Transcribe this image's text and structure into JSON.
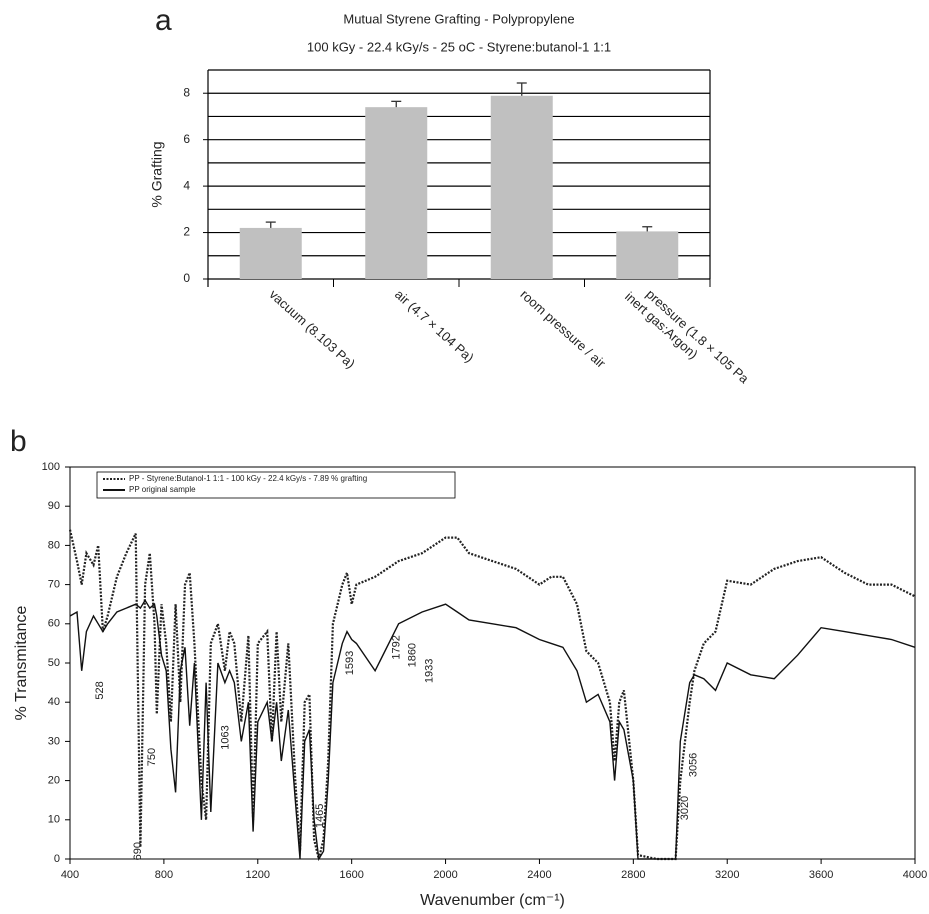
{
  "chart_data": [
    {
      "type": "bar",
      "panel_label": "a",
      "title": "Mutual Styrene Grafting - Polypropylene",
      "subtitle": "100 kGy - 22.4 kGy/s - 25 oC - Styrene:butanol-1 1:1",
      "y_label": "% Grafting",
      "categories": [
        "vacuum (8.103 Pa)",
        "air (4.7 × 104 Pa)",
        "room pressure / air",
        "pressure (1.8 × 105 Pa\ninert gas:Argon)"
      ],
      "values": [
        2.2,
        7.4,
        7.89,
        2.05
      ],
      "errors": [
        0.25,
        0.25,
        0.55,
        0.2
      ],
      "color": "#c0c0c0",
      "ylim": [
        0,
        9
      ],
      "yticks": [
        0,
        2,
        4,
        6,
        8
      ],
      "grid_lines": [
        0,
        1,
        2,
        3,
        4,
        5,
        6,
        7,
        8,
        9
      ],
      "grid": true
    },
    {
      "type": "line",
      "panel_label": "b",
      "x_label": "Wavenumber (cm⁻¹)",
      "y_label": "% Transmitance",
      "x": [
        400,
        430,
        450,
        470,
        500,
        520,
        540,
        560,
        600,
        640,
        680,
        700,
        720,
        740,
        760,
        770,
        790,
        810,
        830,
        850,
        870,
        890,
        910,
        930,
        960,
        980,
        1000,
        1030,
        1060,
        1080,
        1100,
        1130,
        1160,
        1180,
        1200,
        1240,
        1260,
        1280,
        1300,
        1330,
        1360,
        1380,
        1400,
        1420,
        1440,
        1460,
        1480,
        1500,
        1520,
        1560,
        1580,
        1600,
        1620,
        1700,
        1800,
        1900,
        2000,
        2050,
        2100,
        2200,
        2300,
        2400,
        2450,
        2500,
        2560,
        2600,
        2650,
        2700,
        2720,
        2740,
        2760,
        2800,
        2820,
        2900,
        2980,
        3000,
        3040,
        3060,
        3100,
        3150,
        3200,
        3300,
        3400,
        3500,
        3600,
        3700,
        3800,
        3900,
        4000
      ],
      "series": [
        {
          "name": "PP - Styrene:Butanol-1 1:1 - 100 kGy - 22.4 kGy/s - 7.89 % grafting",
          "color": "#222222",
          "line_style": "dotted",
          "values": [
            84,
            76,
            70,
            78,
            75,
            80,
            58,
            62,
            72,
            78,
            83,
            3,
            70,
            78,
            60,
            37,
            65,
            55,
            35,
            65,
            40,
            70,
            73,
            55,
            20,
            10,
            55,
            60,
            48,
            58,
            55,
            35,
            57,
            10,
            55,
            58,
            30,
            58,
            35,
            55,
            20,
            2,
            40,
            42,
            5,
            0,
            5,
            25,
            60,
            70,
            73,
            65,
            70,
            72,
            76,
            78,
            82,
            82,
            78,
            76,
            74,
            70,
            72,
            72,
            65,
            53,
            50,
            40,
            25,
            40,
            43,
            20,
            1,
            0,
            0,
            20,
            40,
            48,
            55,
            58,
            71,
            70,
            74,
            76,
            77,
            73,
            70,
            70,
            67
          ]
        },
        {
          "name": "PP original sample",
          "color": "#111111",
          "line_style": "solid",
          "values": [
            62,
            63,
            48,
            58,
            62,
            60,
            58,
            60,
            63,
            64,
            65,
            64,
            66,
            64,
            65,
            62,
            52,
            48,
            28,
            17,
            48,
            54,
            34,
            50,
            10,
            45,
            12,
            50,
            45,
            48,
            45,
            30,
            40,
            7,
            35,
            40,
            30,
            40,
            25,
            38,
            15,
            0,
            30,
            33,
            10,
            0,
            2,
            20,
            45,
            55,
            58,
            56,
            55,
            48,
            60,
            63,
            65,
            63,
            61,
            60,
            59,
            56,
            55,
            54,
            48,
            40,
            42,
            35,
            20,
            35,
            33,
            20,
            0,
            0,
            0,
            30,
            45,
            47,
            46,
            43,
            50,
            47,
            46,
            52,
            59,
            58,
            57,
            56,
            54
          ]
        }
      ],
      "annotations": [
        {
          "label": "528",
          "x": 528,
          "y": 43
        },
        {
          "label": "690",
          "x": 690,
          "y": 2
        },
        {
          "label": "750",
          "x": 750,
          "y": 26
        },
        {
          "label": "1063",
          "x": 1063,
          "y": 31
        },
        {
          "label": "1465",
          "x": 1465,
          "y": 11
        },
        {
          "label": "1593",
          "x": 1593,
          "y": 50
        },
        {
          "label": "1792",
          "x": 1792,
          "y": 54
        },
        {
          "label": "1860",
          "x": 1860,
          "y": 52
        },
        {
          "label": "1933",
          "x": 1933,
          "y": 48
        },
        {
          "label": "3020",
          "x": 3020,
          "y": 13
        },
        {
          "label": "3056",
          "x": 3056,
          "y": 24
        }
      ],
      "xlim": [
        400,
        4000
      ],
      "xticks": [
        400,
        800,
        1200,
        1600,
        2000,
        2400,
        2800,
        3200,
        3600,
        4000
      ],
      "ylim": [
        0,
        100
      ],
      "yticks": [
        0,
        10,
        20,
        30,
        40,
        50,
        60,
        70,
        80,
        90,
        100
      ],
      "grid": false,
      "legend": "upper-left"
    }
  ]
}
